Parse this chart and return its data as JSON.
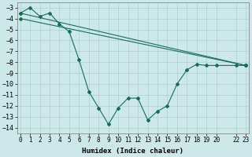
{
  "xlabel": "Humidex (Indice chaleur)",
  "ylabel": "",
  "background_color": "#cce8e8",
  "grid_color": "#aad0d0",
  "line_color": "#1a6b5a",
  "x_tick_labels": [
    "0",
    "1",
    "2",
    "3",
    "4",
    "5",
    "6",
    "7",
    "8",
    "9",
    "10",
    "11",
    "12",
    "13",
    "14",
    "15",
    "16",
    "17",
    "18",
    "19",
    "20",
    "22",
    "23"
  ],
  "x_tick_positions": [
    0,
    1,
    2,
    3,
    4,
    5,
    6,
    7,
    8,
    9,
    10,
    11,
    12,
    13,
    14,
    15,
    16,
    17,
    18,
    19,
    20,
    22,
    23
  ],
  "ylim": [
    -14.5,
    -2.5
  ],
  "xlim": [
    -0.3,
    23.3
  ],
  "series1_x": [
    0,
    1,
    2,
    3,
    4,
    5,
    6,
    7,
    8,
    9,
    10,
    11,
    12,
    13,
    14,
    15,
    16,
    17,
    18,
    19,
    20,
    22,
    23
  ],
  "series1_y": [
    -3.5,
    -3.0,
    -3.8,
    -3.5,
    -4.5,
    -5.2,
    -7.8,
    -10.7,
    -12.2,
    -13.7,
    -12.2,
    -11.3,
    -11.3,
    -13.3,
    -12.5,
    -12.0,
    -10.0,
    -8.7,
    -8.2,
    -8.3,
    -8.3,
    -8.3,
    -8.3
  ],
  "series2_x": [
    0,
    23
  ],
  "series2_y": [
    -3.5,
    -8.3
  ],
  "series3_x": [
    0,
    23
  ],
  "series3_y": [
    -4.0,
    -8.3
  ],
  "yticks": [
    -3,
    -4,
    -5,
    -6,
    -7,
    -8,
    -9,
    -10,
    -11,
    -12,
    -13,
    -14
  ],
  "font_size": 6,
  "marker_size": 2.0,
  "lw": 0.8
}
